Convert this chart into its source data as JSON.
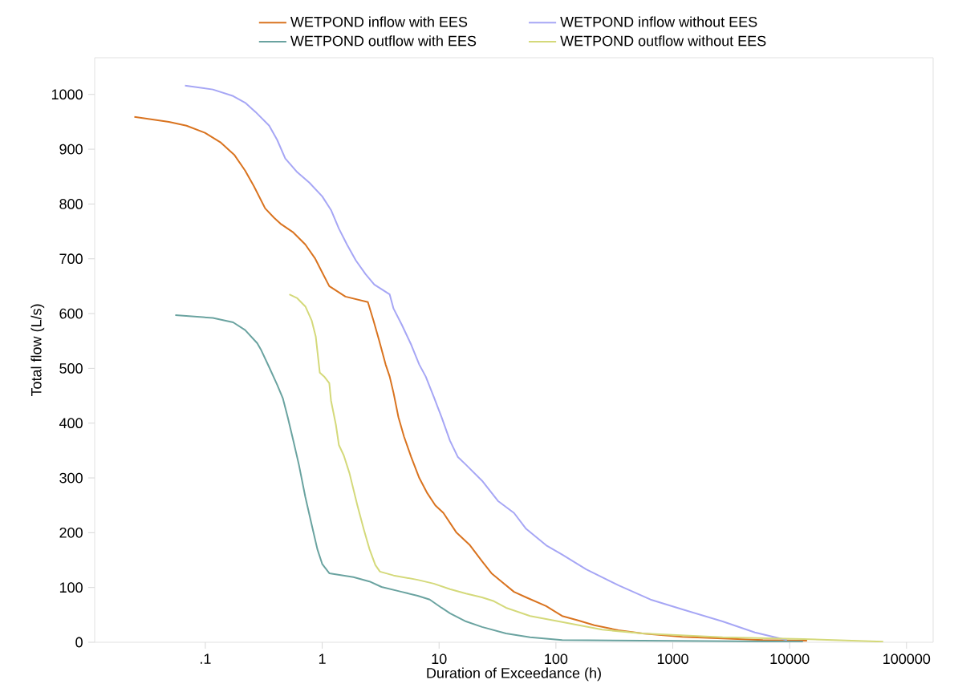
{
  "chart_data": {
    "type": "line",
    "xlabel": "Duration of Exceedance (h)",
    "ylabel": "Total flow (L/s)",
    "log": "x",
    "legend": "top",
    "xlim": [
      0.0113,
      169000
    ],
    "ylim": [
      0,
      1067
    ],
    "xticks": [
      {
        "value": 0.1,
        "label": ".1"
      },
      1,
      10,
      100,
      1000,
      10000,
      100000
    ],
    "yticks": [
      0,
      100,
      200,
      300,
      400,
      500,
      600,
      700,
      800,
      900,
      1000
    ],
    "series": [
      {
        "name": "WETPOND inflow with EES",
        "color": "#d9731f",
        "x": [
          0.0247,
          0.0488,
          0.069,
          0.0993,
          0.136,
          0.178,
          0.219,
          0.261,
          0.325,
          0.387,
          0.446,
          0.566,
          0.718,
          0.867,
          1.0,
          1.15,
          1.58,
          2.46,
          2.75,
          3.07,
          3.49,
          3.78,
          4.08,
          4.49,
          5.02,
          5.78,
          6.77,
          7.94,
          9.29,
          10.9,
          14.0,
          18.4,
          23.3,
          28.1,
          34.5,
          43.8,
          55.6,
          82.5,
          113,
          155,
          213,
          342,
          550,
          1210,
          2670,
          5900,
          14100
        ],
        "values": [
          959,
          950,
          943,
          930,
          912,
          889,
          861,
          832,
          792,
          775,
          763,
          748,
          726,
          701,
          675,
          650,
          631,
          621,
          587,
          551,
          507,
          485,
          455,
          411,
          375,
          338,
          300,
          272,
          250,
          236,
          201,
          177,
          148,
          126,
          110,
          92,
          82,
          66,
          48,
          40,
          31,
          22,
          16,
          10,
          7,
          4,
          3
        ]
      },
      {
        "name": "WETPOND inflow without EES",
        "color": "#a6a6f5",
        "x": [
          0.067,
          0.116,
          0.173,
          0.219,
          0.269,
          0.352,
          0.412,
          0.483,
          0.612,
          0.776,
          1.0,
          1.19,
          1.39,
          1.63,
          1.94,
          2.35,
          2.79,
          3.78,
          4.08,
          4.79,
          5.78,
          6.77,
          7.69,
          9.01,
          10.5,
          12.4,
          14.5,
          17.0,
          23.3,
          31.9,
          43.8,
          55.6,
          82.5,
          113,
          182,
          342,
          644,
          1210,
          2670,
          5040,
          9480
        ],
        "values": [
          1016,
          1009,
          997,
          985,
          968,
          943,
          917,
          883,
          858,
          839,
          814,
          789,
          755,
          726,
          697,
          672,
          653,
          635,
          609,
          580,
          543,
          507,
          485,
          448,
          411,
          368,
          338,
          324,
          295,
          258,
          236,
          207,
          177,
          160,
          133,
          104,
          78,
          60,
          38,
          18,
          4
        ]
      },
      {
        "name": "WETPOND outflow with EES",
        "color": "#6aa3a0",
        "x": [
          0.0553,
          0.116,
          0.173,
          0.219,
          0.278,
          0.301,
          0.352,
          0.412,
          0.461,
          0.507,
          0.566,
          0.632,
          0.718,
          0.814,
          0.909,
          1.0,
          1.15,
          1.85,
          2.54,
          3.22,
          4.79,
          6.56,
          8.32,
          10.5,
          12.4,
          17.0,
          23.3,
          37.4,
          60.1,
          113,
          550,
          13000
        ],
        "values": [
          597,
          592,
          584,
          570,
          546,
          533,
          502,
          470,
          445,
          411,
          368,
          324,
          265,
          214,
          170,
          143,
          126,
          119,
          111,
          101,
          92,
          85,
          78,
          63,
          53,
          38,
          28,
          16,
          9,
          4,
          3,
          1
        ]
      },
      {
        "name": "WETPOND outflow without EES",
        "color": "#d4d97a",
        "x": [
          0.523,
          0.612,
          0.718,
          0.814,
          0.881,
          0.954,
          1.05,
          1.15,
          1.19,
          1.31,
          1.39,
          1.53,
          1.71,
          2.0,
          2.27,
          2.54,
          2.85,
          3.12,
          4.08,
          6.56,
          9.01,
          12.4,
          17.0,
          23.3,
          29.5,
          37.4,
          60.1,
          113,
          249,
          550,
          2670,
          13000,
          63200
        ],
        "values": [
          635,
          628,
          613,
          587,
          558,
          492,
          484,
          473,
          441,
          397,
          360,
          341,
          309,
          250,
          206,
          170,
          141,
          129,
          122,
          114,
          107,
          97,
          89,
          82,
          75,
          63,
          48,
          37,
          23,
          16,
          9,
          6,
          1
        ]
      }
    ]
  }
}
